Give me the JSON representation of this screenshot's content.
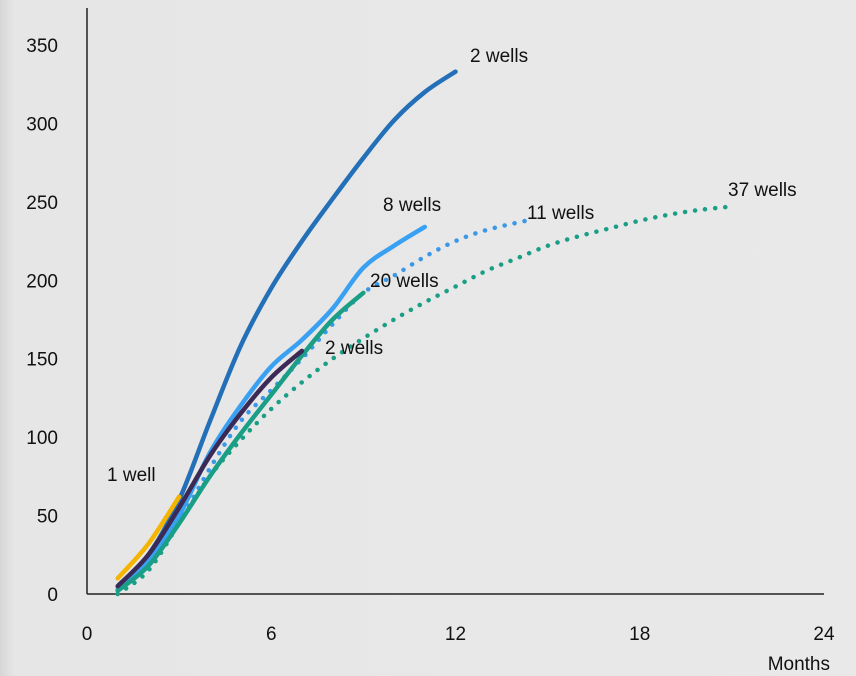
{
  "chart_data": {
    "type": "line",
    "title": "",
    "xlabel": "Months",
    "ylabel": "",
    "xlim": [
      0,
      24
    ],
    "ylim": [
      0,
      350
    ],
    "x_ticks": [
      0,
      6,
      12,
      18,
      24
    ],
    "y_ticks": [
      0,
      50,
      100,
      150,
      200,
      250,
      300,
      350
    ],
    "grid": false,
    "legend": "none",
    "series": [
      {
        "label": "2 wells",
        "color": "#2370b8",
        "style": "solid",
        "x": [
          1,
          2,
          3,
          4,
          5,
          6,
          7,
          8,
          9,
          10,
          11,
          12
        ],
        "y": [
          5,
          25,
          60,
          110,
          158,
          195,
          225,
          252,
          278,
          302,
          320,
          333
        ]
      },
      {
        "label": "8 wells",
        "color": "#3aa0f2",
        "style": "solid",
        "x": [
          1,
          2,
          3,
          4,
          5,
          6,
          7,
          8,
          9,
          10,
          11
        ],
        "y": [
          3,
          22,
          50,
          90,
          120,
          145,
          162,
          182,
          208,
          222,
          234
        ]
      },
      {
        "label": "11 wells",
        "color": "#3a98e8",
        "style": "dotted",
        "x": [
          3,
          4,
          5,
          6,
          7,
          8,
          9,
          10,
          11,
          12,
          13,
          14.3
        ],
        "y": [
          45,
          80,
          110,
          130,
          150,
          172,
          192,
          203,
          215,
          225,
          232,
          238
        ]
      },
      {
        "label": "20 wells",
        "color": "#1a9e86",
        "style": "solid",
        "x": [
          1,
          2,
          3,
          4,
          5,
          6,
          7,
          8,
          9
        ],
        "y": [
          2,
          18,
          45,
          75,
          102,
          127,
          152,
          175,
          192
        ]
      },
      {
        "label": "2 wells",
        "color": "#3b2a55",
        "style": "solid",
        "x": [
          1,
          2,
          3,
          4,
          5,
          6,
          7
        ],
        "y": [
          5,
          25,
          55,
          88,
          115,
          138,
          155
        ]
      },
      {
        "label": "37 wells",
        "color": "#1a9e86",
        "style": "dotted",
        "x": [
          1,
          2,
          3,
          4,
          5,
          6,
          7,
          8,
          9,
          10,
          11,
          12,
          13,
          14,
          15,
          16,
          17,
          18,
          19,
          20,
          21
        ],
        "y": [
          0,
          15,
          45,
          75,
          98,
          118,
          135,
          150,
          163,
          175,
          186,
          196,
          206,
          214,
          222,
          228,
          233,
          238,
          242,
          245,
          247
        ]
      },
      {
        "label": "1 well",
        "color": "#f5b400",
        "style": "solid",
        "x": [
          1,
          2,
          3
        ],
        "y": [
          10,
          32,
          62
        ]
      }
    ]
  }
}
